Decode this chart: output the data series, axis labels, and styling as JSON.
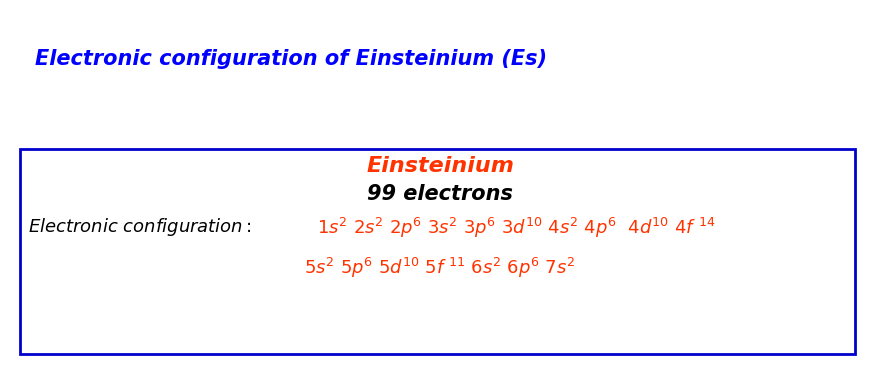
{
  "title": "Electronic configuration of Einsteinium (Es)",
  "title_color": "#0000FF",
  "title_fontsize": 15,
  "element_name": "Einsteinium",
  "element_color": "#FF3300",
  "electrons_text": "99 electrons",
  "electrons_color": "#000000",
  "config_label": "Electronic configuration: ",
  "config_label_color": "#000000",
  "config_line1": "1s² 2s² 2p⁶ 3s² 3p⁶ 3d¹⁰ 4s² 4p⁶  4d¹⁰ 4f ¹⁴",
  "config_line2": "5s² 5p⁶ 5d¹⁰ 5f ¹¹ 6s² 6p⁶ 7s²",
  "config_color": "#FF3300",
  "box_edge_color": "#0000CD",
  "background_color": "#FFFFFF",
  "font_size_config": 13,
  "font_size_element": 16,
  "font_size_electrons": 15
}
